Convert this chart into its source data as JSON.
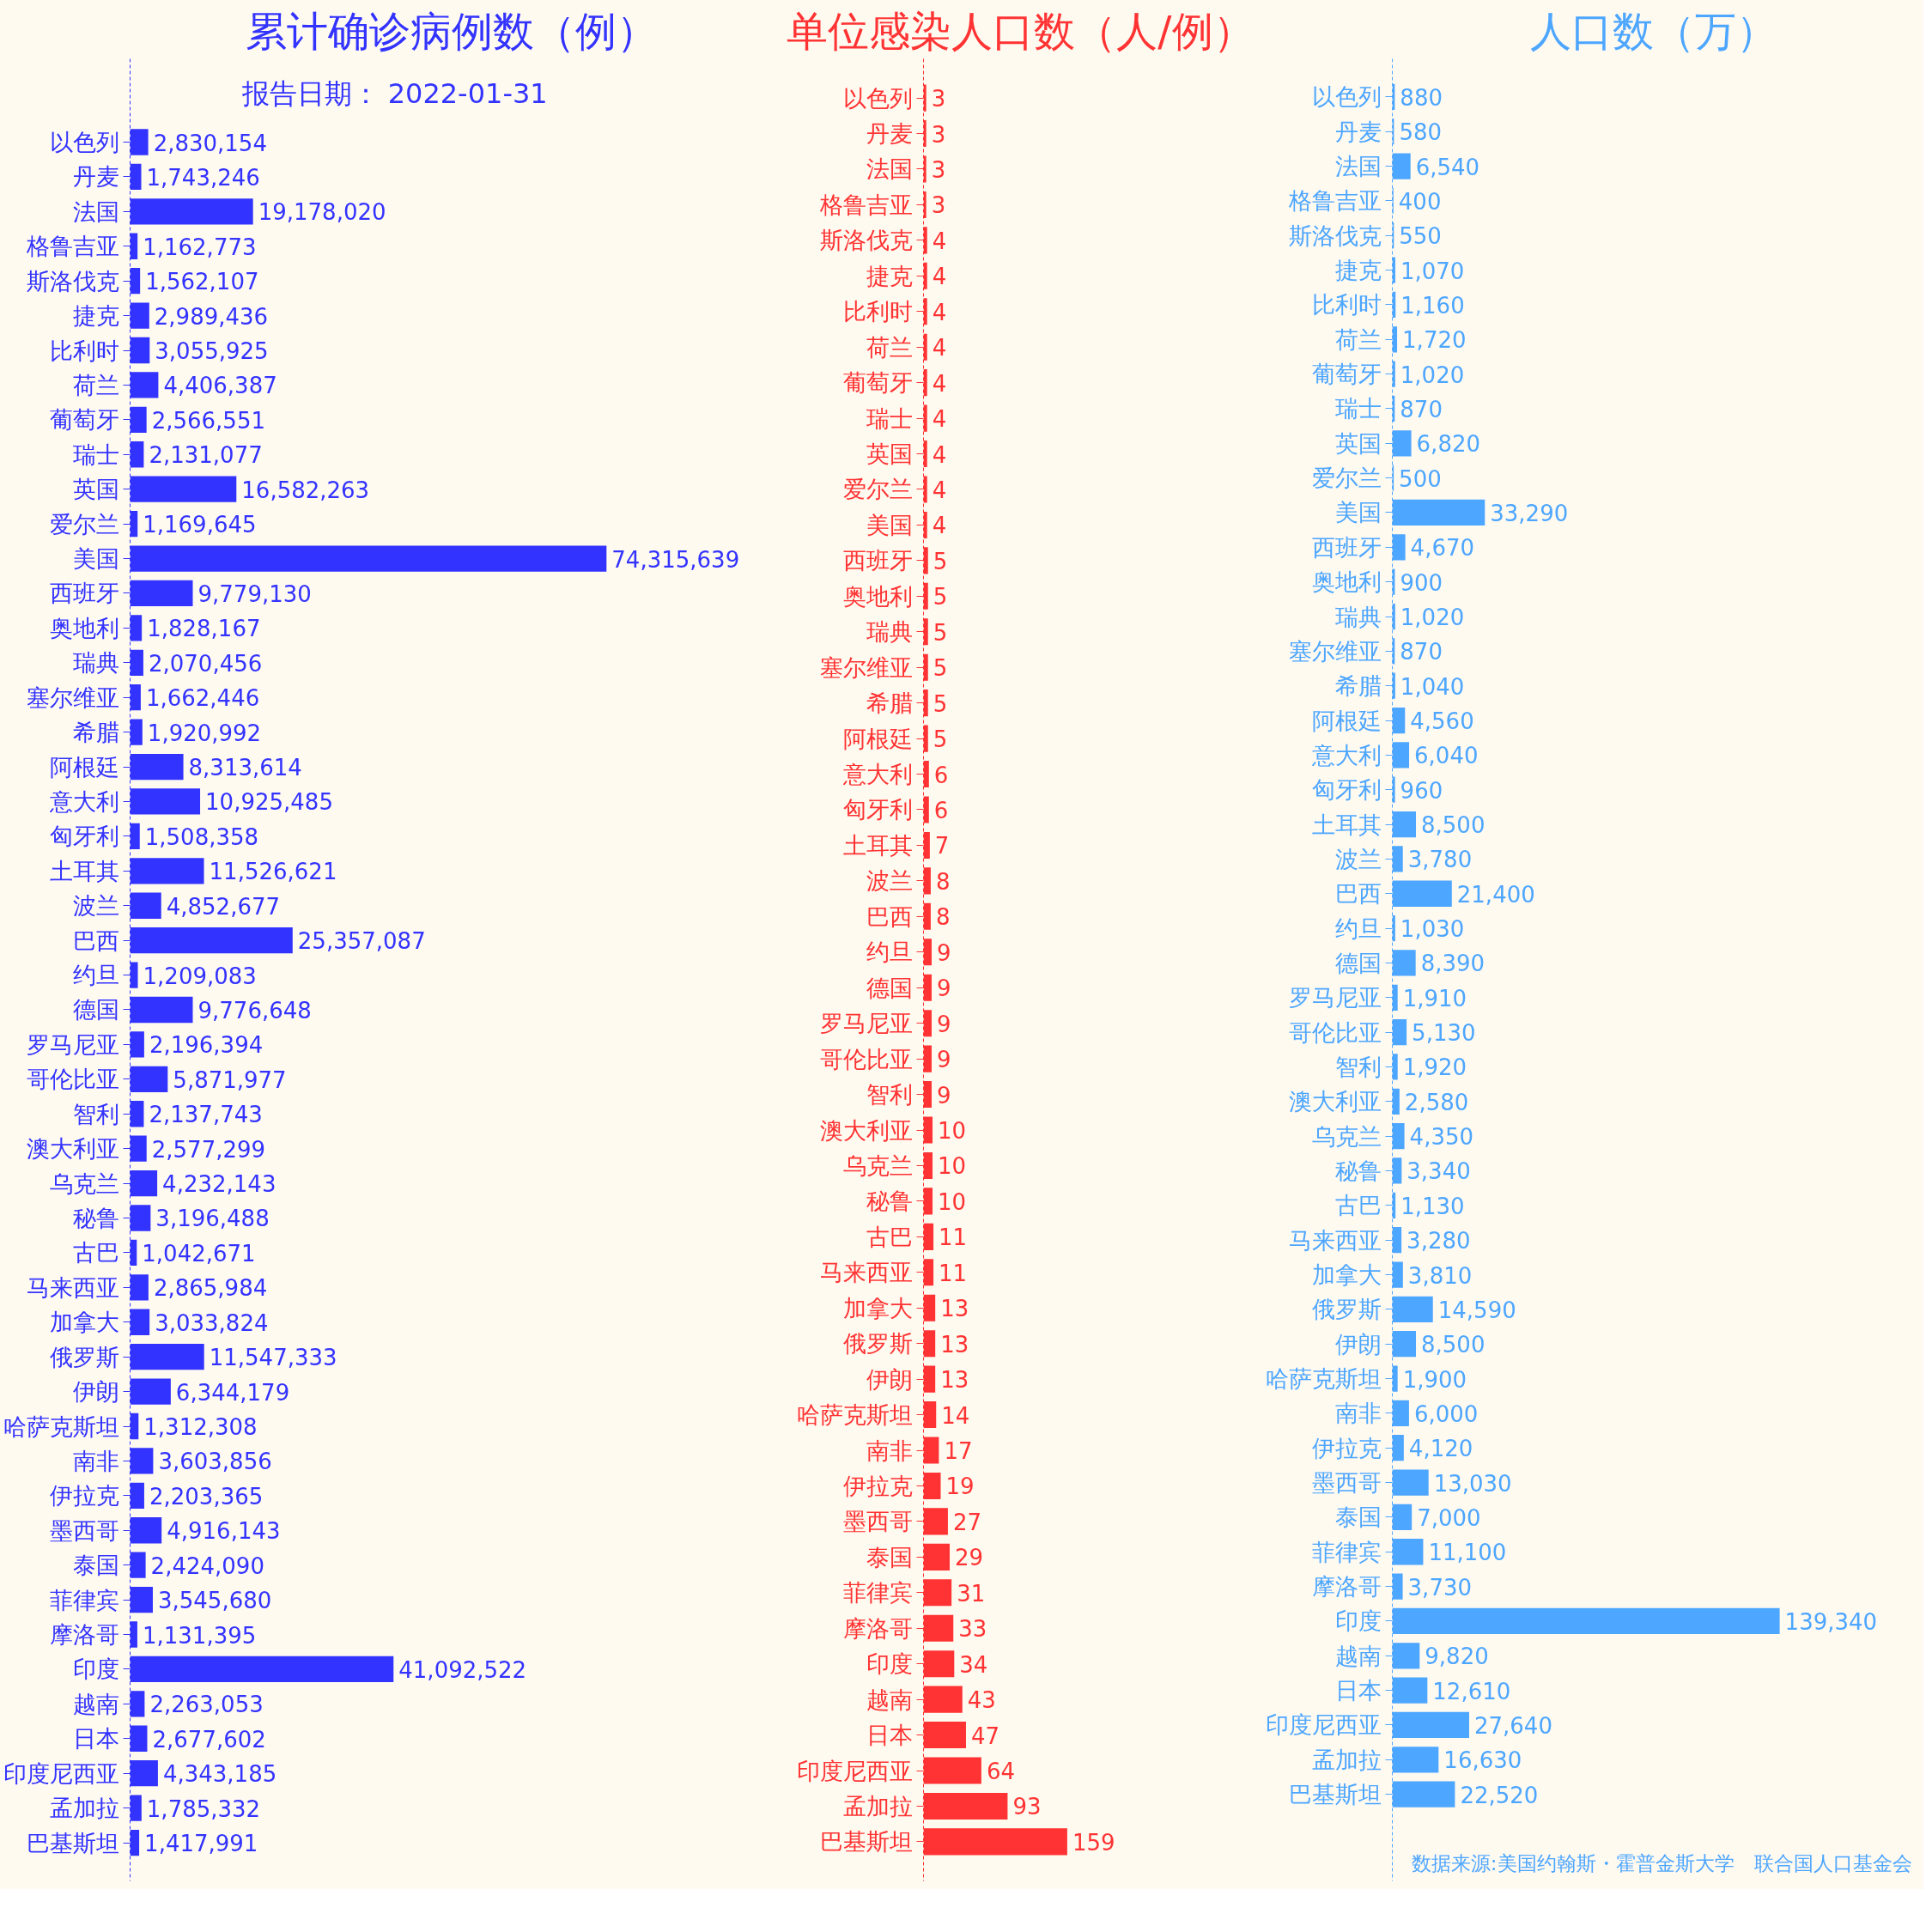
{
  "chart_data": [
    {
      "type": "bar",
      "orientation": "horizontal",
      "title": "累计确诊病例数（例）",
      "subtitle": "报告日期： 2022-01-31",
      "grid": false,
      "tick_labels": "y",
      "categories": [
        "以色列",
        "丹麦",
        "法国",
        "格鲁吉亚",
        "斯洛伐克",
        "捷克",
        "比利时",
        "荷兰",
        "葡萄牙",
        "瑞士",
        "英国",
        "爱尔兰",
        "美国",
        "西班牙",
        "奥地利",
        "瑞典",
        "塞尔维亚",
        "希腊",
        "阿根廷",
        "意大利",
        "匈牙利",
        "土耳其",
        "波兰",
        "巴西",
        "约旦",
        "德国",
        "罗马尼亚",
        "哥伦比亚",
        "智利",
        "澳大利亚",
        "乌克兰",
        "秘鲁",
        "古巴",
        "马来西亚",
        "加拿大",
        "俄罗斯",
        "伊朗",
        "哈萨克斯坦",
        "南非",
        "伊拉克",
        "墨西哥",
        "泰国",
        "菲律宾",
        "摩洛哥",
        "印度",
        "越南",
        "日本",
        "印度尼西亚",
        "孟加拉",
        "巴基斯坦"
      ],
      "series": [
        {
          "color": "#3333ff",
          "values": [
            2830154,
            1743246,
            19178020,
            1162773,
            1562107,
            2989436,
            3055925,
            4406387,
            2566551,
            2131077,
            16582263,
            1169645,
            74315639,
            9779130,
            1828167,
            2070456,
            1662446,
            1920992,
            8313614,
            10925485,
            1508358,
            11526621,
            4852677,
            25357087,
            1209083,
            9776648,
            2196394,
            5871977,
            2137743,
            2577299,
            4232143,
            3196488,
            1042671,
            2865984,
            3033824,
            11547333,
            6344179,
            1312308,
            3603856,
            2203365,
            4916143,
            2424090,
            3545680,
            1131395,
            41092522,
            2263053,
            2677602,
            4343185,
            1785332,
            1417991
          ],
          "value_labels": [
            "2,830,154",
            "1,743,246",
            "19,178,020",
            "1,162,773",
            "1,562,107",
            "2,989,436",
            "3,055,925",
            "4,406,387",
            "2,566,551",
            "2,131,077",
            "16,582,263",
            "1,169,645",
            "74,315,639",
            "9,779,130",
            "1,828,167",
            "2,070,456",
            "1,662,446",
            "1,920,992",
            "8,313,614",
            "10,925,485",
            "1,508,358",
            "11,526,621",
            "4,852,677",
            "25,357,087",
            "1,209,083",
            "9,776,648",
            "2,196,394",
            "5,871,977",
            "2,137,743",
            "2,577,299",
            "4,232,143",
            "3,196,488",
            "1,042,671",
            "2,865,984",
            "3,033,824",
            "11,547,333",
            "6,344,179",
            "1,312,308",
            "3,603,856",
            "2,203,365",
            "4,916,143",
            "2,424,090",
            "3,545,680",
            "1,131,395",
            "41,092,522",
            "2,263,053",
            "2,677,602",
            "4,343,185",
            "1,785,332",
            "1,417,991"
          ]
        }
      ]
    },
    {
      "type": "bar",
      "orientation": "horizontal",
      "title": "单位感染人口数（人/例）",
      "data_labels": true,
      "grid": false,
      "tick_labels": "y",
      "categories": [
        "以色列",
        "丹麦",
        "法国",
        "格鲁吉亚",
        "斯洛伐克",
        "捷克",
        "比利时",
        "荷兰",
        "葡萄牙",
        "瑞士",
        "英国",
        "爱尔兰",
        "美国",
        "西班牙",
        "奥地利",
        "瑞典",
        "塞尔维亚",
        "希腊",
        "阿根廷",
        "意大利",
        "匈牙利",
        "土耳其",
        "波兰",
        "巴西",
        "约旦",
        "德国",
        "罗马尼亚",
        "哥伦比亚",
        "智利",
        "澳大利亚",
        "乌克兰",
        "秘鲁",
        "古巴",
        "马来西亚",
        "加拿大",
        "俄罗斯",
        "伊朗",
        "哈萨克斯坦",
        "南非",
        "伊拉克",
        "墨西哥",
        "泰国",
        "菲律宾",
        "摩洛哥",
        "印度",
        "越南",
        "日本",
        "印度尼西亚",
        "孟加拉",
        "巴基斯坦"
      ],
      "series": [
        {
          "color": "#ff3333",
          "values": [
            3,
            3,
            3,
            3,
            4,
            4,
            4,
            4,
            4,
            4,
            4,
            4,
            4,
            5,
            5,
            5,
            5,
            5,
            5,
            6,
            6,
            7,
            8,
            8,
            9,
            9,
            9,
            9,
            9,
            10,
            10,
            10,
            11,
            11,
            13,
            13,
            13,
            14,
            17,
            19,
            27,
            29,
            31,
            33,
            34,
            43,
            47,
            64,
            93,
            159
          ]
        }
      ]
    },
    {
      "type": "bar",
      "orientation": "horizontal",
      "title": "人口数（万）",
      "grid": false,
      "tick_labels": "y",
      "annotations": [
        "数据来源:美国约翰斯・霍普金斯大学　联合国人口基金会"
      ],
      "categories": [
        "以色列",
        "丹麦",
        "法国",
        "格鲁吉亚",
        "斯洛伐克",
        "捷克",
        "比利时",
        "荷兰",
        "葡萄牙",
        "瑞士",
        "英国",
        "爱尔兰",
        "美国",
        "西班牙",
        "奥地利",
        "瑞典",
        "塞尔维亚",
        "希腊",
        "阿根廷",
        "意大利",
        "匈牙利",
        "土耳其",
        "波兰",
        "巴西",
        "约旦",
        "德国",
        "罗马尼亚",
        "哥伦比亚",
        "智利",
        "澳大利亚",
        "乌克兰",
        "秘鲁",
        "古巴",
        "马来西亚",
        "加拿大",
        "俄罗斯",
        "伊朗",
        "哈萨克斯坦",
        "南非",
        "伊拉克",
        "墨西哥",
        "泰国",
        "菲律宾",
        "摩洛哥",
        "印度",
        "越南",
        "日本",
        "印度尼西亚",
        "孟加拉",
        "巴基斯坦"
      ],
      "series": [
        {
          "color": "#4da6ff",
          "values": [
            880,
            580,
            6540,
            400,
            550,
            1070,
            1160,
            1720,
            1020,
            870,
            6820,
            500,
            33290,
            4670,
            900,
            1020,
            870,
            1040,
            4560,
            6040,
            960,
            8500,
            3780,
            21400,
            1030,
            8390,
            1910,
            5130,
            1920,
            2580,
            4350,
            3340,
            1130,
            3280,
            3810,
            14590,
            8500,
            1900,
            6000,
            4120,
            13030,
            7000,
            11100,
            3730,
            139340,
            9820,
            12610,
            27640,
            16630,
            22520
          ],
          "value_labels": [
            "880",
            "580",
            "6,540",
            "400",
            "550",
            "1,070",
            "1,160",
            "1,720",
            "1,020",
            "870",
            "6,820",
            "500",
            "33,290",
            "4,670",
            "900",
            "1,020",
            "870",
            "1,040",
            "4,560",
            "6,040",
            "960",
            "8,500",
            "3,780",
            "21,400",
            "1,030",
            "8,390",
            "1,910",
            "5,130",
            "1,920",
            "2,580",
            "4,350",
            "3,340",
            "1,130",
            "3,280",
            "3,810",
            "14,590",
            "8,500",
            "1,900",
            "6,000",
            "4,120",
            "13,030",
            "7,000",
            "11,100",
            "3,730",
            "139,340",
            "9,820",
            "12,610",
            "27,640",
            "16,630",
            "22,520"
          ]
        }
      ]
    }
  ]
}
